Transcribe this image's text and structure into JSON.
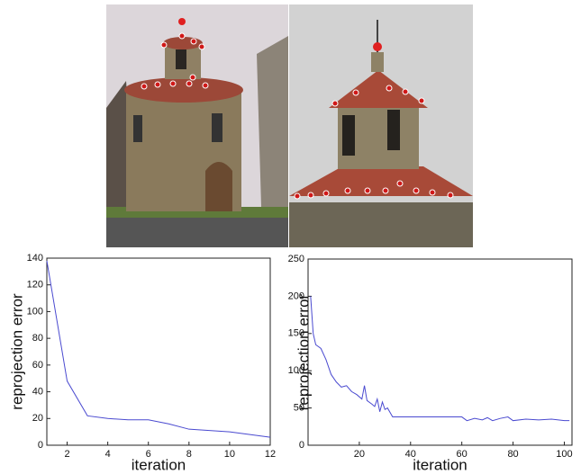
{
  "chart_data": [
    {
      "type": "line",
      "xlabel": "iteration",
      "ylabel": "reprojection error",
      "x": [
        1,
        2,
        3,
        4,
        5,
        6,
        7,
        8,
        9,
        10,
        11,
        12
      ],
      "series": [
        {
          "color": "#4a4ad0",
          "values": [
            138,
            48,
            22,
            20,
            19,
            19,
            16,
            12,
            11,
            10,
            8,
            6
          ]
        }
      ],
      "xlim": [
        1,
        12
      ],
      "xticks": [
        2,
        4,
        6,
        8,
        10,
        12
      ],
      "ylim": [
        0,
        140
      ],
      "yticks": [
        0,
        20,
        40,
        60,
        80,
        100,
        120,
        140
      ]
    },
    {
      "type": "line",
      "xlabel": "iteration",
      "ylabel": "reprojection error",
      "x": [
        1,
        2,
        3,
        5,
        7,
        9,
        11,
        13,
        15,
        17,
        19,
        21,
        22,
        23,
        25,
        26,
        27,
        28,
        29,
        30,
        31,
        33,
        40,
        50,
        60,
        62,
        65,
        68,
        70,
        72,
        75,
        78,
        80,
        85,
        90,
        95,
        100,
        102
      ],
      "series": [
        {
          "color": "#4a4ad0",
          "values": [
            200,
            150,
            135,
            130,
            115,
            95,
            85,
            78,
            80,
            72,
            68,
            62,
            80,
            60,
            55,
            52,
            62,
            45,
            58,
            48,
            50,
            38,
            38,
            38,
            38,
            33,
            36,
            34,
            37,
            33,
            36,
            38,
            33,
            35,
            34,
            35,
            33,
            33
          ]
        }
      ],
      "xlim": [
        0,
        103
      ],
      "xticks": [
        20,
        40,
        60,
        80,
        100
      ],
      "ylim": [
        0,
        250
      ],
      "yticks": [
        0,
        50,
        100,
        150,
        200,
        250
      ]
    }
  ]
}
